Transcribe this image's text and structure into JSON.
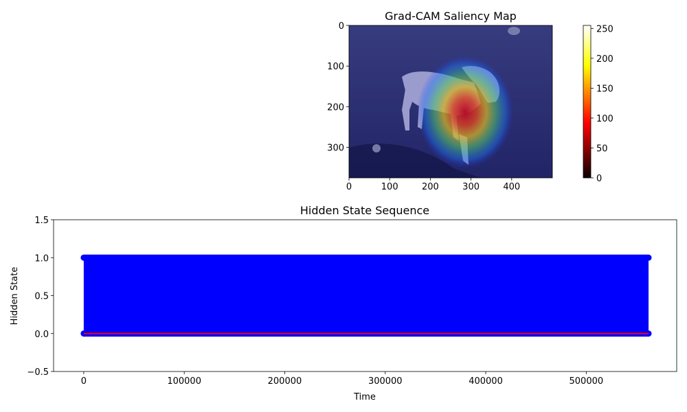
{
  "chart_data": [
    {
      "type": "heatmap",
      "title": "Grad-CAM Saliency Map",
      "xlabel": "",
      "ylabel": "",
      "xlim": [
        0,
        500
      ],
      "ylim": [
        375,
        0
      ],
      "x_ticks": [
        "0",
        "100",
        "200",
        "300",
        "400"
      ],
      "y_ticks": [
        "0",
        "100",
        "200",
        "300"
      ],
      "image_content": "photo of a white dog on dark grass with a jet-colormap heatmap overlay",
      "heat_center": [
        280,
        205
      ],
      "colorbar": {
        "colormap": "hot",
        "range": [
          0,
          255
        ],
        "ticks": [
          "0",
          "50",
          "100",
          "150",
          "200",
          "250"
        ]
      }
    },
    {
      "type": "line",
      "title": "Hidden State Sequence",
      "xlabel": "Time",
      "ylabel": "Hidden State",
      "xlim": [
        -30000,
        590000
      ],
      "ylim": [
        -0.5,
        1.5
      ],
      "x_ticks": [
        "0",
        "100000",
        "200000",
        "300000",
        "400000",
        "500000"
      ],
      "y_ticks": [
        "−0.5",
        "0.0",
        "0.5",
        "1.0",
        "1.5"
      ],
      "series": [
        {
          "color": "#0000ff",
          "marker": "o",
          "description": "rapidly alternating binary state between 0 and 1",
          "x_range": [
            0,
            562000
          ],
          "values_between": [
            0,
            1
          ]
        },
        {
          "color": "#ff0000",
          "x_range": [
            0,
            562000
          ],
          "constant_value": 0
        }
      ]
    }
  ]
}
